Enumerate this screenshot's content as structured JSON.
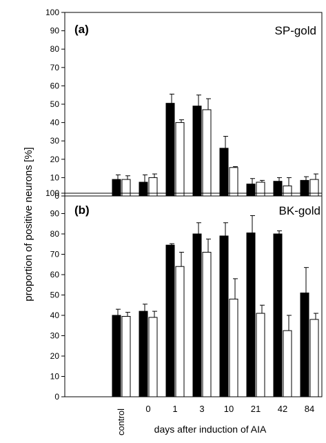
{
  "figure": {
    "ylabel": "proportion of positive neurons [%]",
    "xlabel": "days after induction of AIA"
  },
  "chart_data": [
    {
      "type": "bar",
      "panel_label": "(a)",
      "name": "SP-gold",
      "categories": [
        "control",
        "0",
        "1",
        "3",
        "10",
        "21",
        "42",
        "84"
      ],
      "series": [
        {
          "fill": "black",
          "values": [
            9,
            7.5,
            50.5,
            49,
            26,
            6.5,
            8,
            8.5
          ],
          "errors": [
            2.5,
            4,
            5,
            6,
            6.5,
            3,
            2,
            2
          ]
        },
        {
          "fill": "white",
          "values": [
            9,
            10,
            40,
            47,
            15.5,
            7.5,
            5.5,
            9
          ],
          "errors": [
            2,
            2,
            1.5,
            6,
            0.5,
            1,
            4.5,
            3
          ]
        }
      ],
      "ylim": [
        0,
        100
      ],
      "yticks": [
        0,
        10,
        20,
        30,
        40,
        50,
        60,
        70,
        80,
        90,
        100
      ]
    },
    {
      "type": "bar",
      "panel_label": "(b)",
      "name": "BK-gold",
      "categories": [
        "control",
        "0",
        "1",
        "3",
        "10",
        "21",
        "42",
        "84"
      ],
      "series": [
        {
          "fill": "black",
          "values": [
            40,
            42,
            74.5,
            80,
            79,
            80.5,
            80,
            51
          ],
          "errors": [
            3,
            3.5,
            0.7,
            5.5,
            6.5,
            8.5,
            1.5,
            12.5
          ]
        },
        {
          "fill": "white",
          "values": [
            39.5,
            39,
            64,
            71,
            48,
            41,
            32.5,
            38
          ],
          "errors": [
            2,
            3,
            7,
            6.5,
            10,
            4,
            7.5,
            3
          ]
        }
      ],
      "ylim": [
        0,
        100
      ],
      "yticks": [
        0,
        10,
        20,
        30,
        40,
        50,
        60,
        70,
        80,
        90,
        100
      ]
    }
  ],
  "colors": {
    "filled_bar": "#000000",
    "open_bar": "#ffffff",
    "axis": "#000000"
  }
}
